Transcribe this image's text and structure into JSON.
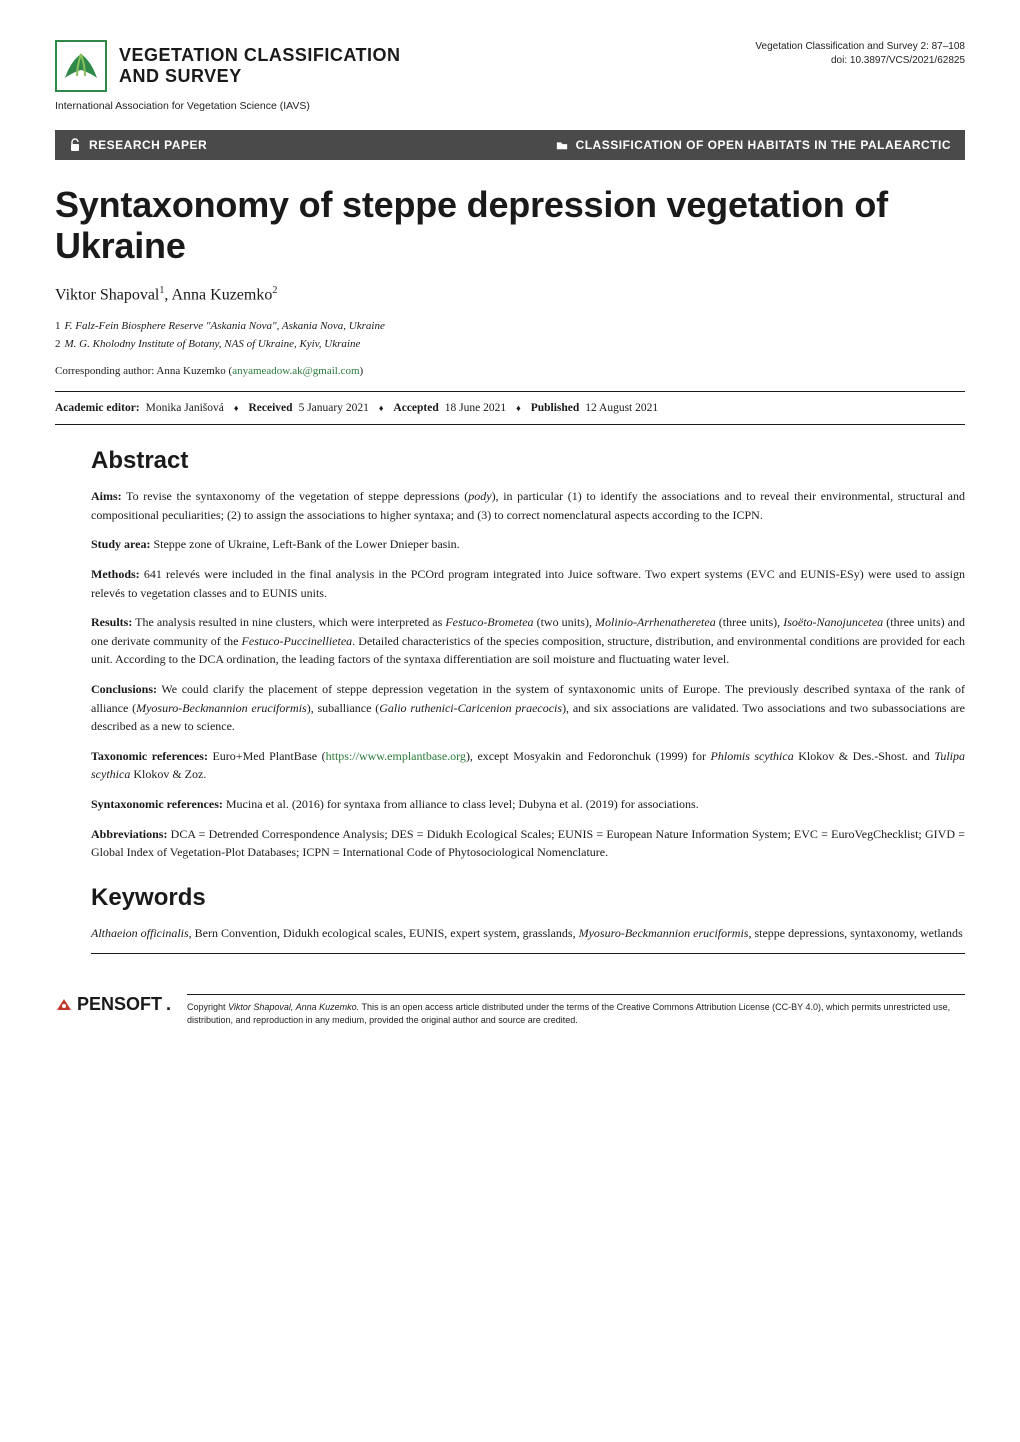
{
  "journal": {
    "title_line1": "VEGETATION CLASSIFICATION",
    "title_line2": "AND SURVEY",
    "iavs": "International Association for Vegetation Science (IAVS)",
    "meta_line1": "Vegetation Classification and Survey 2: 87–108",
    "meta_line2": "doi: 10.3897/VCS/2021/62825",
    "logo_color_outer": "#2f8a4a",
    "logo_color_inner": "#8abf5a"
  },
  "banner": {
    "left_label": "RESEARCH PAPER",
    "right_label": "CLASSIFICATION OF OPEN HABITATS IN THE PALAEARCTIC",
    "bg": "#4a4a4a",
    "fg": "#ffffff"
  },
  "article": {
    "title": "Syntaxonomy of steppe depression vegetation of Ukraine"
  },
  "authors_html": "Viktor Shapoval<sup>1</sup>, Anna Kuzemko<sup>2</sup>",
  "affiliations": [
    {
      "num": "1",
      "text": "F. Falz-Fein Biosphere Reserve \"Askania Nova\", Askania Nova, Ukraine"
    },
    {
      "num": "2",
      "text": "M. G. Kholodny Institute of Botany, NAS of Ukraine, Kyiv, Ukraine"
    }
  ],
  "corresponding": {
    "label": "Corresponding author: Anna Kuzemko (",
    "email": "anyameadow.ak@gmail.com",
    "suffix": ")"
  },
  "editorial": {
    "editor_label": "Academic editor:",
    "editor_name": "Monika Janišová",
    "received_label": "Received",
    "received_date": "5 January 2021",
    "accepted_label": "Accepted",
    "accepted_date": "18 June 2021",
    "published_label": "Published",
    "published_date": "12 August 2021"
  },
  "sections": {
    "abstract_title": "Abstract",
    "keywords_title": "Keywords"
  },
  "abstract": {
    "aims_label": "Aims:",
    "aims_text": " To revise the syntaxonomy of the vegetation of steppe depressions (pody), in particular (1) to identify the associations and to reveal their environmental, structural and compositional peculiarities; (2) to assign the associations to higher syntaxa; and (3) to correct nomenclatural aspects according to the ICPN.",
    "area_label": "Study area:",
    "area_text": " Steppe zone of Ukraine, Left-Bank of the Lower Dnieper basin.",
    "methods_label": "Methods:",
    "methods_text": " 641 relevés were included in the final analysis in the PCOrd program integrated into Juice software. Two expert systems (EVC and EUNIS-ESy) were used to assign relevés to vegetation classes and to EUNIS units.",
    "results_label": "Results:",
    "results_text": " The analysis resulted in nine clusters, which were interpreted as Festuco-Brometea (two units), Molinio-Arrhenatheretea (three units), Isoëto-Nanojuncetea (three units) and one derivate community of the Festuco-Puccinellietea. Detailed characteristics of the species composition, structure, distribution, and environmental conditions are provided for each unit. According to the DCA ordination, the leading factors of the syntaxa differentiation are soil moisture and fluctuating water level.",
    "conclusions_label": "Conclusions:",
    "conclusions_text": " We could clarify the placement of steppe depression vegetation in the system of syntaxonomic units of Europe. The previously described syntaxa of the rank of alliance (Myosuro-Beckmannion eruciformis), suballiance (Galio ruthenici-Caricenion praecocis), and six associations are validated. Two associations and two subassociations are described as a new to science.",
    "taxref_label": "Taxonomic references:",
    "taxref_prefix": " Euro+Med PlantBase (",
    "taxref_url": "https://www.emplantbase.org",
    "taxref_suffix": "), except Mosyakin and Fedoronchuk (1999) for Phlomis scythica Klokov & Des.-Shost. and Tulipa scythica Klokov & Zoz.",
    "synref_label": "Syntaxonomic references:",
    "synref_text": " Mucina et al. (2016) for syntaxa from alliance to class level; Dubyna et al. (2019) for associations.",
    "abbrev_label": "Abbreviations:",
    "abbrev_text": " DCA = Detrended Correspondence Analysis; DES = Didukh Ecological Scales; EUNIS = European Nature Information System; EVC = EuroVegChecklist; GIVD = Global Index of Vegetation-Plot Databases; ICPN = International Code of Phytosociological Nomenclature."
  },
  "keywords_text": "Althaeion officinalis, Bern Convention, Didukh ecological scales, EUNIS, expert system, grasslands, Myosuro-Beckmannion eruciformis, steppe depressions, syntaxonomy, wetlands",
  "footer": {
    "publisher": "PENSOFT",
    "copyright": "Copyright Viktor Shapoval, Anna Kuzemko. This is an open access article distributed under the terms of the Creative Commons Attribution License (CC-BY 4.0), which permits unrestricted use, distribution, and reproduction in any medium, provided the original author and source are credited.",
    "logo_color": "#c0392b"
  },
  "colors": {
    "text": "#1a1a1a",
    "link": "#2a7a3a",
    "rule": "#1a1a1a"
  }
}
